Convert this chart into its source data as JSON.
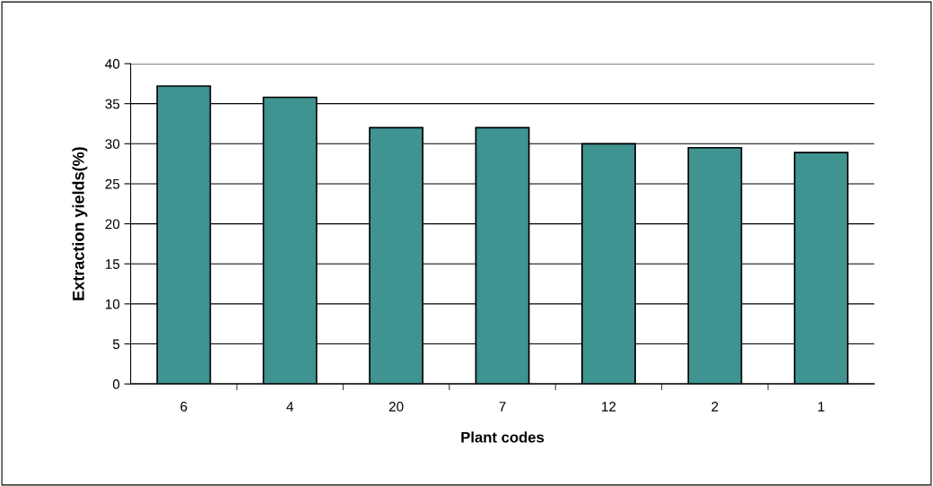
{
  "chart_data": {
    "type": "bar",
    "xlabel": "Plant codes",
    "ylabel": "Extraction yields(%)",
    "categories": [
      "6",
      "4",
      "20",
      "7",
      "12",
      "2",
      "1"
    ],
    "values": [
      37.2,
      35.8,
      32.0,
      32.0,
      30.0,
      29.5,
      28.9
    ],
    "color": "#3f9390",
    "ylim": [
      0,
      40
    ],
    "yticks": [
      0,
      5,
      10,
      15,
      20,
      25,
      30,
      35,
      40
    ],
    "grid": "y",
    "legend": false
  }
}
